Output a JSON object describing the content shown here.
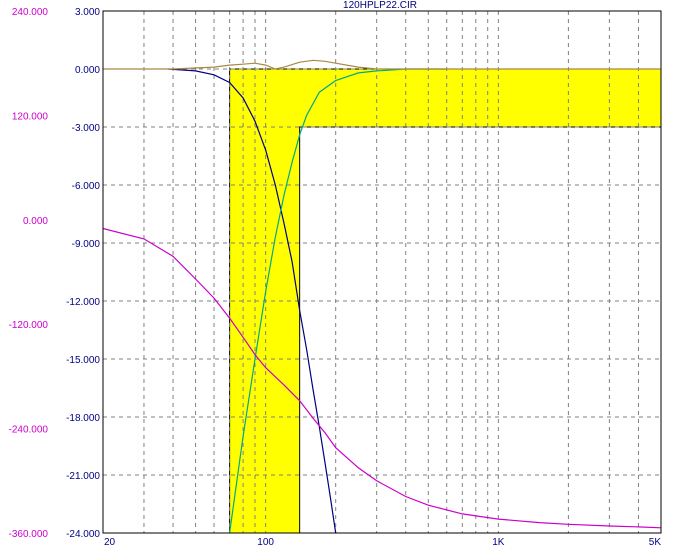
{
  "chart_data": {
    "type": "line",
    "title": "120HPLP22.CIR",
    "xscale": "log",
    "xlim": [
      20,
      5000
    ],
    "x_tick_labels": [
      {
        "value": 20,
        "label": "20"
      },
      {
        "value": 100,
        "label": "100"
      },
      {
        "value": 1000,
        "label": "1K"
      },
      {
        "value": 5000,
        "label": "5K"
      }
    ],
    "x_minor_gridlines": [
      30,
      40,
      50,
      60,
      70,
      80,
      90,
      200,
      300,
      400,
      500,
      600,
      700,
      800,
      900,
      2000,
      3000,
      4000
    ],
    "left_axis": {
      "ylim": [
        -24,
        3
      ],
      "ticks": [
        "3.000",
        "0.000",
        "-3.000",
        "-6.000",
        "-9.000",
        "-12.000",
        "-15.000",
        "-18.000",
        "-21.000",
        "-24.000"
      ],
      "color": "#000080"
    },
    "outer_axis": {
      "ylim": [
        -360,
        240
      ],
      "ticks": [
        "240.000",
        "120.000",
        "0.000",
        "-120.000",
        "-240.000",
        "-360.000"
      ],
      "color": "#cc00cc"
    },
    "grid": true,
    "shaded_region": {
      "color": "#ffff00",
      "x_left": 70,
      "x_right": 140,
      "y_top": 0,
      "y_bottom": -24,
      "upper_right": {
        "x_from": 140,
        "x_to": 5000,
        "y_top": 0,
        "y_bottom": -3
      }
    },
    "series": [
      {
        "color": "#000080",
        "axis": "left",
        "x": [
          38,
          50,
          60,
          70,
          80,
          90,
          100,
          110,
          120,
          130,
          140,
          150,
          160,
          170,
          180,
          190,
          200
        ],
        "y": [
          0.0,
          -0.1,
          -0.3,
          -0.7,
          -1.5,
          -2.7,
          -4.2,
          -6.0,
          -8.0,
          -10.0,
          -12.5,
          -14.5,
          -16.6,
          -18.5,
          -20.4,
          -22.2,
          -24.0
        ]
      },
      {
        "color": "#00aa88",
        "axis": "left",
        "x": [
          70,
          80,
          90,
          100,
          110,
          120,
          130,
          140,
          150,
          170,
          200,
          250,
          300,
          400,
          600
        ],
        "y": [
          -24.0,
          -19.0,
          -15.0,
          -11.5,
          -8.7,
          -6.5,
          -4.8,
          -3.4,
          -2.4,
          -1.2,
          -0.6,
          -0.2,
          -0.1,
          0.0,
          0.0
        ]
      },
      {
        "color": "#aa8844",
        "axis": "left",
        "x": [
          20,
          40,
          60,
          70,
          80,
          90,
          100,
          110,
          120,
          140,
          160,
          180,
          200,
          250,
          300,
          500,
          1000,
          5000
        ],
        "y": [
          0.0,
          0.0,
          0.1,
          0.2,
          0.25,
          0.3,
          0.2,
          0.0,
          0.1,
          0.35,
          0.45,
          0.4,
          0.3,
          0.1,
          0.0,
          0.0,
          0.0,
          0.0
        ]
      },
      {
        "color": "#cc00cc",
        "axis": "outer",
        "x": [
          20,
          30,
          40,
          50,
          60,
          70,
          80,
          90,
          100,
          120,
          140,
          160,
          180,
          200,
          250,
          300,
          400,
          500,
          700,
          1000,
          1500,
          2000,
          3000,
          4000,
          5000
        ],
        "y": [
          -10,
          -22,
          -42,
          -68,
          -90,
          -113,
          -135,
          -155,
          -170,
          -190,
          -208,
          -228,
          -245,
          -262,
          -285,
          -300,
          -318,
          -328,
          -338,
          -344,
          -348,
          -350,
          -352,
          -353,
          -354
        ]
      }
    ]
  }
}
